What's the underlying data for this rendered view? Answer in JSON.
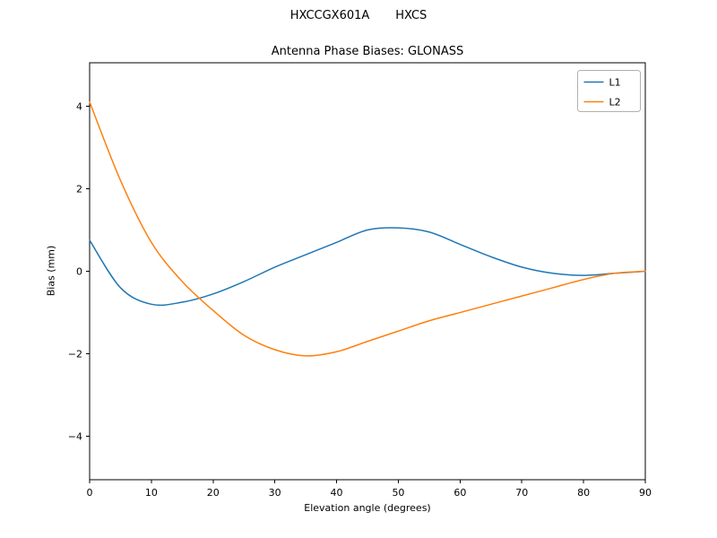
{
  "header": {
    "title": "HXCCGX601A       HXCS"
  },
  "chart_data": {
    "type": "line",
    "title": "Antenna Phase Biases: GLONASS",
    "xlabel": "Elevation angle (degrees)",
    "ylabel": "Bias (mm)",
    "xlim": [
      0,
      90
    ],
    "ylim": [
      -5.05,
      5.05
    ],
    "xticks": [
      0,
      10,
      20,
      30,
      40,
      50,
      60,
      70,
      80,
      90
    ],
    "yticks": [
      -4,
      -2,
      0,
      2,
      4
    ],
    "grid": false,
    "legend_position": "top-right",
    "x": [
      0,
      5,
      10,
      15,
      20,
      25,
      30,
      35,
      40,
      45,
      50,
      55,
      60,
      65,
      70,
      75,
      80,
      85,
      90
    ],
    "series": [
      {
        "name": "L1",
        "color": "#1f77b4",
        "values": [
          0.75,
          -0.4,
          -0.8,
          -0.75,
          -0.55,
          -0.25,
          0.1,
          0.4,
          0.7,
          1.0,
          1.05,
          0.95,
          0.65,
          0.35,
          0.1,
          -0.05,
          -0.1,
          -0.05,
          0.0
        ]
      },
      {
        "name": "L2",
        "color": "#ff7f0e",
        "values": [
          4.1,
          2.2,
          0.7,
          -0.25,
          -0.95,
          -1.55,
          -1.9,
          -2.05,
          -1.95,
          -1.7,
          -1.45,
          -1.2,
          -1.0,
          -0.8,
          -0.6,
          -0.4,
          -0.2,
          -0.05,
          0.0
        ]
      }
    ]
  }
}
